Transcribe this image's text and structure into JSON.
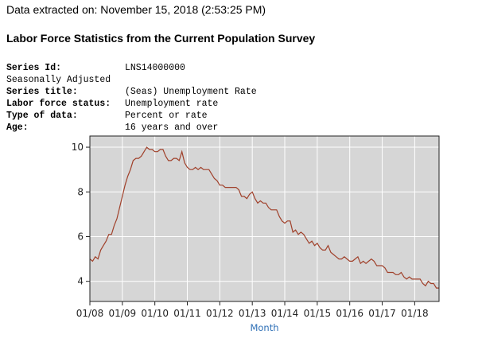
{
  "header": {
    "extracted": "Data extracted on: November 15, 2018 (2:53:25 PM)",
    "title": "Labor Force Statistics from the Current Population Survey"
  },
  "meta": {
    "series_id_label": "Series Id:",
    "series_id": "LNS14000000",
    "seasonal": "Seasonally Adjusted",
    "series_title_label": "Series title:",
    "series_title": "(Seas) Unemployment Rate",
    "lf_status_label": "Labor force status:",
    "lf_status": "Unemployment rate",
    "type_label": "Type of data:",
    "type": "Percent or rate",
    "age_label": "Age:",
    "age": "16 years and over"
  },
  "colors": {
    "line": "#a0402a",
    "plot_bg": "#d6d6d6",
    "grid": "#ffffff",
    "axis_title": "#2e6fb6"
  },
  "chart_data": {
    "type": "line",
    "title": "",
    "xlabel": "Month",
    "ylabel": "",
    "grid": true,
    "ylim": [
      3.1,
      10.5
    ],
    "xlim": [
      "2008-01",
      "2018-10"
    ],
    "yticks": [
      4,
      6,
      8,
      10
    ],
    "ytick_labels": [
      "4",
      "6",
      "8",
      "10"
    ],
    "xticks": [
      "2008-01",
      "2009-01",
      "2010-01",
      "2011-01",
      "2012-01",
      "2013-01",
      "2014-01",
      "2015-01",
      "2016-01",
      "2017-01",
      "2018-01"
    ],
    "xtick_labels": [
      "01/08",
      "01/09",
      "01/10",
      "01/11",
      "01/12",
      "01/13",
      "01/14",
      "01/15",
      "01/16",
      "01/17",
      "01/18"
    ],
    "series": [
      {
        "start": "2008-01",
        "values": [
          5.0,
          4.9,
          5.1,
          5.0,
          5.4,
          5.6,
          5.8,
          6.1,
          6.1,
          6.5,
          6.8,
          7.3,
          7.8,
          8.3,
          8.7,
          9.0,
          9.4,
          9.5,
          9.5,
          9.6,
          9.8,
          10.0,
          9.9,
          9.9,
          9.8,
          9.8,
          9.9,
          9.9,
          9.6,
          9.4,
          9.4,
          9.5,
          9.5,
          9.4,
          9.8,
          9.3,
          9.1,
          9.0,
          9.0,
          9.1,
          9.0,
          9.1,
          9.0,
          9.0,
          9.0,
          8.8,
          8.6,
          8.5,
          8.3,
          8.3,
          8.2,
          8.2,
          8.2,
          8.2,
          8.2,
          8.1,
          7.8,
          7.8,
          7.7,
          7.9,
          8.0,
          7.7,
          7.5,
          7.6,
          7.5,
          7.5,
          7.3,
          7.2,
          7.2,
          7.2,
          6.9,
          6.7,
          6.6,
          6.7,
          6.7,
          6.2,
          6.3,
          6.1,
          6.2,
          6.1,
          5.9,
          5.7,
          5.8,
          5.6,
          5.7,
          5.5,
          5.4,
          5.4,
          5.6,
          5.3,
          5.2,
          5.1,
          5.0,
          5.0,
          5.1,
          5.0,
          4.9,
          4.9,
          5.0,
          5.1,
          4.8,
          4.9,
          4.8,
          4.9,
          5.0,
          4.9,
          4.7,
          4.7,
          4.7,
          4.6,
          4.4,
          4.4,
          4.4,
          4.3,
          4.3,
          4.4,
          4.2,
          4.1,
          4.2,
          4.1,
          4.1,
          4.1,
          4.1,
          3.9,
          3.8,
          4.0,
          3.9,
          3.9,
          3.7,
          3.7
        ]
      }
    ]
  }
}
